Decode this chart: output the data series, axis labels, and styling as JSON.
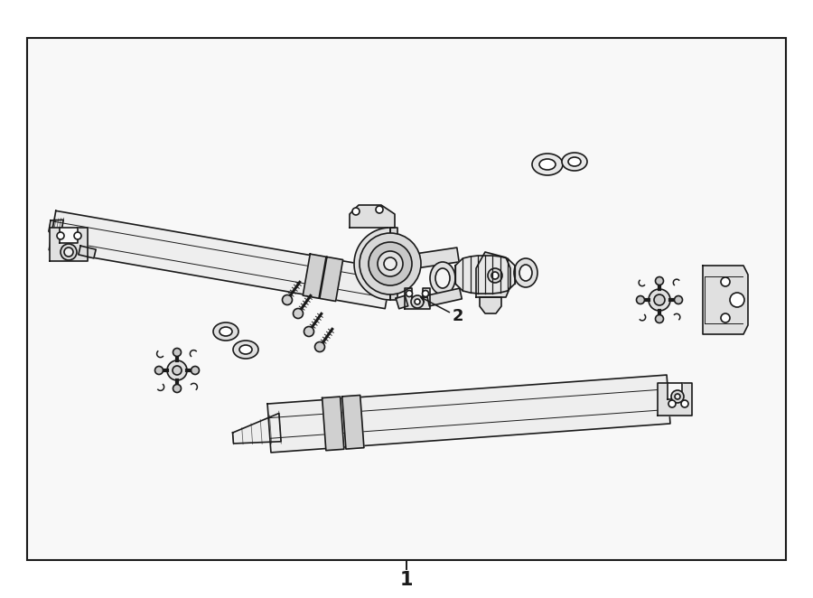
{
  "bg_color": "#ffffff",
  "box_bg": "#f5f5f5",
  "lc": "#1a1a1a",
  "lw": 1.2,
  "label1": "1",
  "label2": "2"
}
